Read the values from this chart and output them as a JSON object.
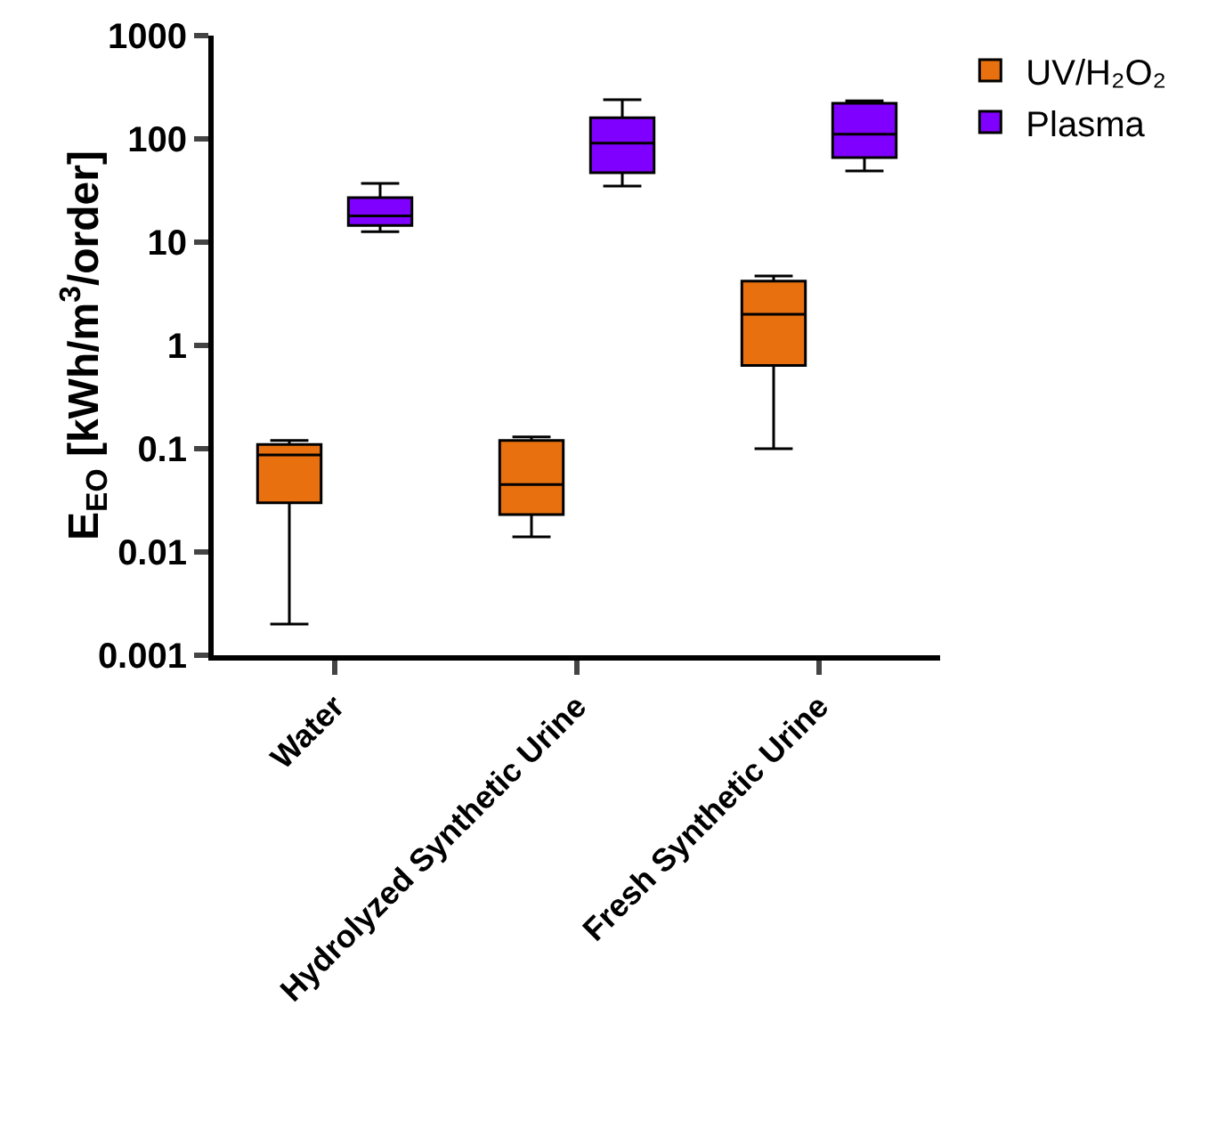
{
  "chart_data": {
    "type": "box",
    "ylabel": "E$_{EO}$ [kWh/m$^{3}$/order]",
    "categories": [
      "Water",
      "Hydrolyzed Synthetic Urine",
      "Fresh Synthetic Urine"
    ],
    "series": [
      {
        "name": "UV/H₂O₂",
        "color": "#e8700f",
        "boxes": [
          {
            "low": 0.002,
            "q1": 0.03,
            "median": 0.087,
            "q3": 0.11,
            "high": 0.12
          },
          {
            "low": 0.014,
            "q1": 0.023,
            "median": 0.045,
            "q3": 0.12,
            "high": 0.13
          },
          {
            "low": 0.1,
            "q1": 0.64,
            "median": 2,
            "q3": 4.2,
            "high": 4.7
          }
        ]
      },
      {
        "name": "Plasma",
        "color": "#8000ff",
        "boxes": [
          {
            "low": 12.6,
            "q1": 14.5,
            "median": 18,
            "q3": 27,
            "high": 37
          },
          {
            "low": 35,
            "q1": 47,
            "median": 91,
            "q3": 160,
            "high": 240
          },
          {
            "low": 49,
            "q1": 66,
            "median": 111,
            "q3": 221,
            "high": 234
          }
        ]
      }
    ],
    "log": "y",
    "ylim": [
      0.001,
      1000
    ],
    "yticks": [
      0.001,
      0.01,
      0.1,
      1,
      10,
      100,
      1000
    ],
    "grid": false,
    "legend": "top right"
  }
}
